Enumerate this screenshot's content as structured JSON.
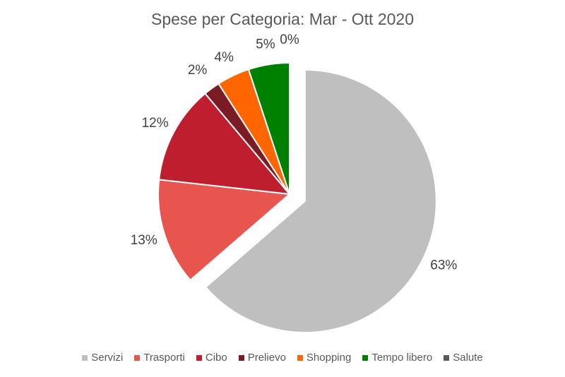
{
  "chart_data": {
    "type": "pie",
    "title": "Spese per Categoria: Mar - Ott 2020",
    "categories": [
      "Servizi",
      "Trasporti",
      "Cibo",
      "Prelievo",
      "Shopping",
      "Tempo libero",
      "Salute"
    ],
    "values": [
      63,
      13,
      12,
      2,
      4,
      5,
      0
    ],
    "labels": [
      "63%",
      "13%",
      "12%",
      "2%",
      "4%",
      "5%",
      "0%"
    ],
    "colors": [
      "#bfbfbf",
      "#e8554e",
      "#be1e2d",
      "#7b1c24",
      "#ff6600",
      "#008000",
      "#595959"
    ],
    "exploded": [
      "Servizi"
    ],
    "legend_position": "bottom"
  }
}
